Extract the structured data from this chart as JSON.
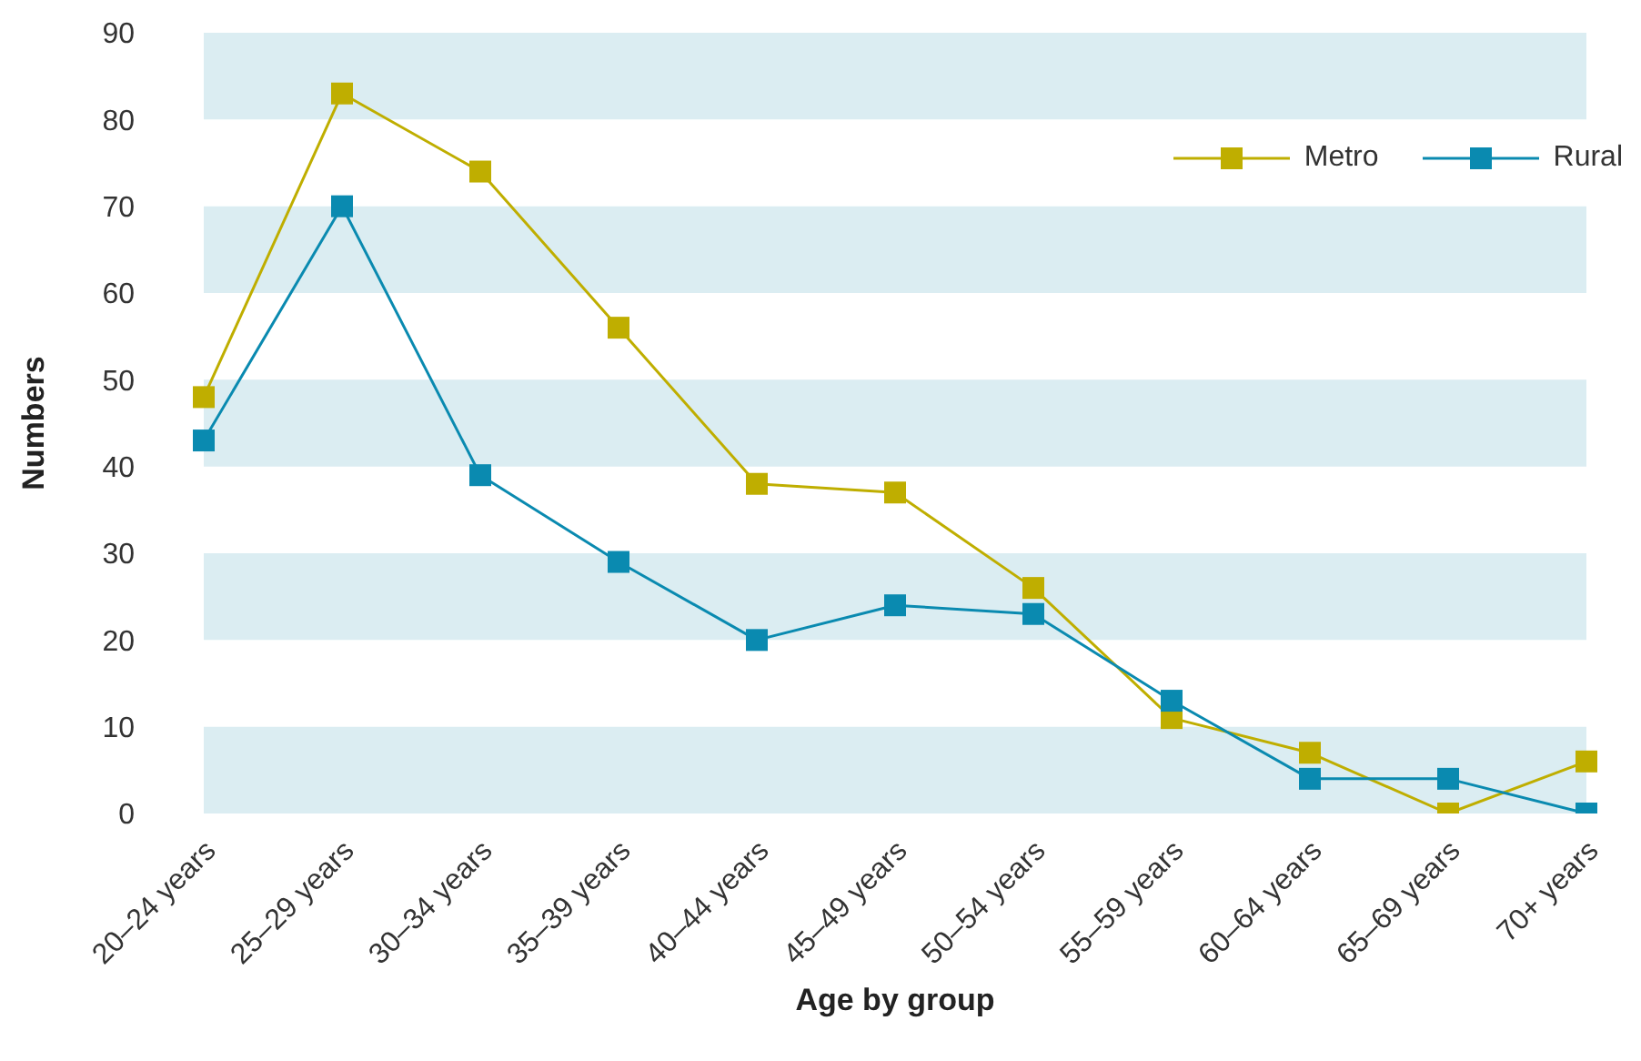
{
  "chart_data": {
    "type": "line",
    "xlabel": "Age by group",
    "ylabel": "Numbers",
    "categories": [
      "20–24 years",
      "25–29 years",
      "30–34 years",
      "35–39 years",
      "40–44 years",
      "45–49 years",
      "50–54 years",
      "55–59 years",
      "60–64 years",
      "65–69 years",
      "70+ years"
    ],
    "series": [
      {
        "name": "Metro",
        "color": "#bfae00",
        "values": [
          48,
          83,
          74,
          56,
          38,
          37,
          26,
          11,
          7,
          0,
          6
        ]
      },
      {
        "name": "Rural",
        "color": "#0a8ab0",
        "values": [
          43,
          70,
          39,
          29,
          20,
          24,
          23,
          13,
          4,
          4,
          0
        ]
      }
    ],
    "ylim": [
      0,
      90
    ],
    "yticks": [
      0,
      10,
      20,
      30,
      40,
      50,
      60,
      70,
      80,
      90
    ],
    "bands": [
      {
        "axis": "y",
        "from": 0,
        "to": 10,
        "color": "#dbedf2"
      },
      {
        "axis": "y",
        "from": 20,
        "to": 30,
        "color": "#dbedf2"
      },
      {
        "axis": "y",
        "from": 40,
        "to": 50,
        "color": "#dbedf2"
      },
      {
        "axis": "y",
        "from": 60,
        "to": 70,
        "color": "#dbedf2"
      },
      {
        "axis": "y",
        "from": 80,
        "to": 90,
        "color": "#dbedf2"
      }
    ],
    "grid": false,
    "legend": "top right",
    "marker": "square",
    "line_style": "solid"
  }
}
